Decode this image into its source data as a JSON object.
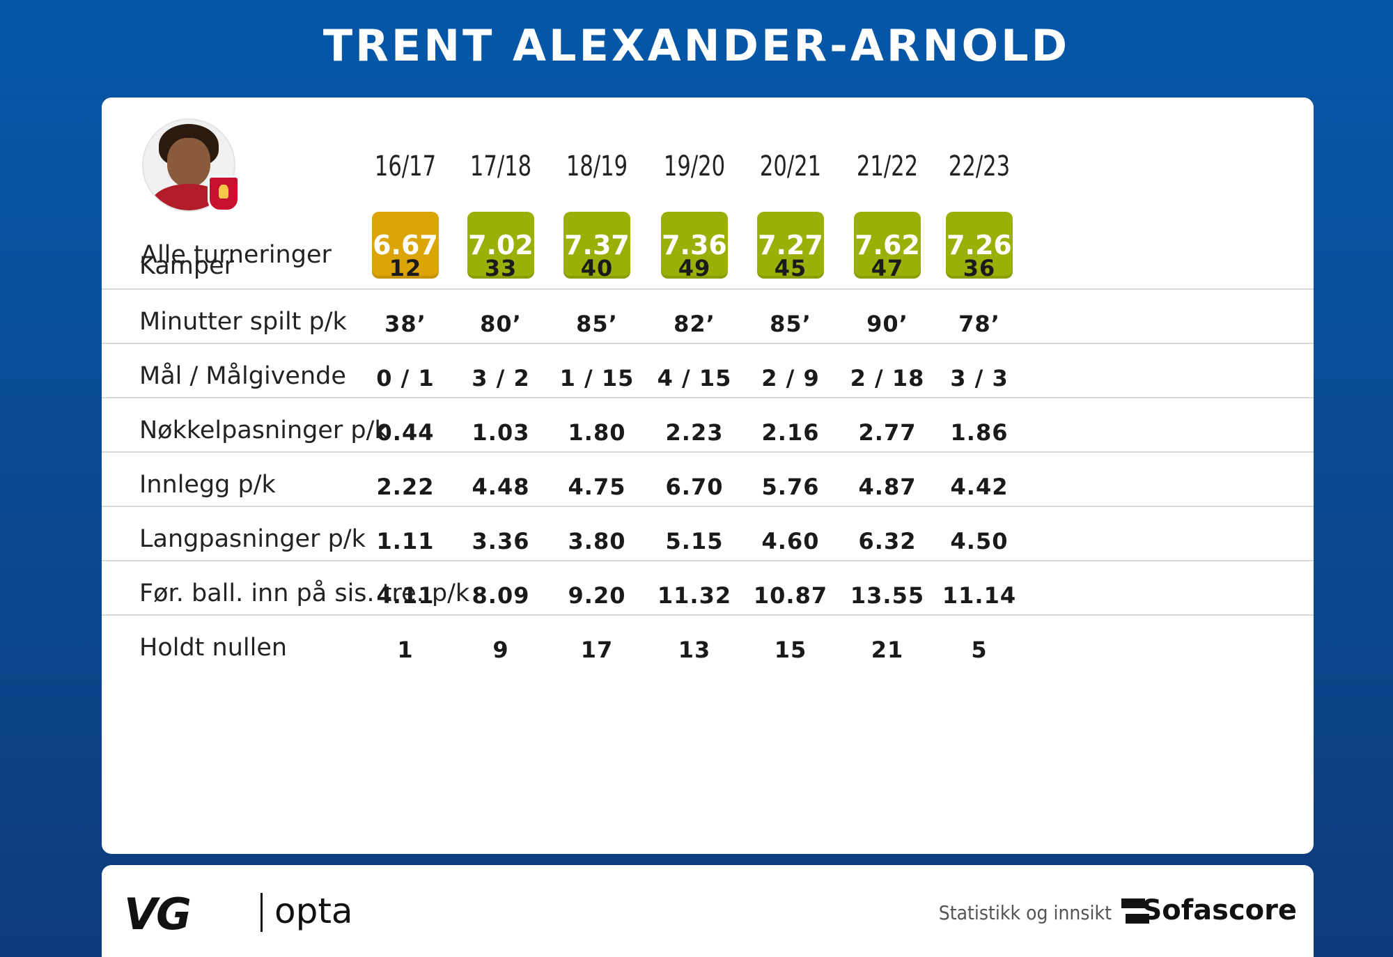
{
  "title": "TRENT ALEXANDER-ARNOLD",
  "seasons": [
    "16/17",
    "17/18",
    "18/19",
    "19/20",
    "20/21",
    "21/22",
    "22/23"
  ],
  "ratings_label": "Alle turneringer",
  "ratings": [
    {
      "value": "6.67",
      "color": "#dba408"
    },
    {
      "value": "7.02",
      "color": "#9ab008"
    },
    {
      "value": "7.37",
      "color": "#9ab008"
    },
    {
      "value": "7.36",
      "color": "#9ab008"
    },
    {
      "value": "7.27",
      "color": "#9ab008"
    },
    {
      "value": "7.62",
      "color": "#9ab008"
    },
    {
      "value": "7.26",
      "color": "#9ab008"
    }
  ],
  "rows": [
    {
      "label": "Kamper",
      "values": [
        "12",
        "33",
        "40",
        "49",
        "45",
        "47",
        "36"
      ]
    },
    {
      "label": "Minutter spilt p/k",
      "values": [
        "38’",
        "80’",
        "85’",
        "82’",
        "85’",
        "90’",
        "78’"
      ]
    },
    {
      "label": "Mål / Målgivende",
      "values": [
        "0 / 1",
        "3 / 2",
        "1 / 15",
        "4 / 15",
        "2 / 9",
        "2 / 18",
        "3 / 3"
      ]
    },
    {
      "label": "Nøkkelpasninger p/k",
      "values": [
        "0.44",
        "1.03",
        "1.80",
        "2.23",
        "2.16",
        "2.77",
        "1.86"
      ]
    },
    {
      "label": "Innlegg p/k",
      "values": [
        "2.22",
        "4.48",
        "4.75",
        "6.70",
        "5.76",
        "4.87",
        "4.42"
      ]
    },
    {
      "label": "Langpasninger p/k",
      "values": [
        "1.11",
        "3.36",
        "3.80",
        "5.15",
        "4.60",
        "6.32",
        "4.50"
      ]
    },
    {
      "label": "Før. ball. inn på sis. tre. p/k",
      "values": [
        "4.11",
        "8.09",
        "9.20",
        "11.32",
        "10.87",
        "13.55",
        "11.14"
      ]
    },
    {
      "label": "Holdt nullen",
      "values": [
        "1",
        "9",
        "17",
        "13",
        "15",
        "21",
        "5"
      ]
    }
  ],
  "footer": {
    "vg": "VG",
    "opta": "opta",
    "stat_text": "Statistikk og innsikt",
    "sofascore": "Sofascore"
  },
  "icons": {
    "avatar": "player-avatar",
    "crest": "liverpool-crest-icon",
    "sofascore": "sofascore-logo-icon"
  }
}
